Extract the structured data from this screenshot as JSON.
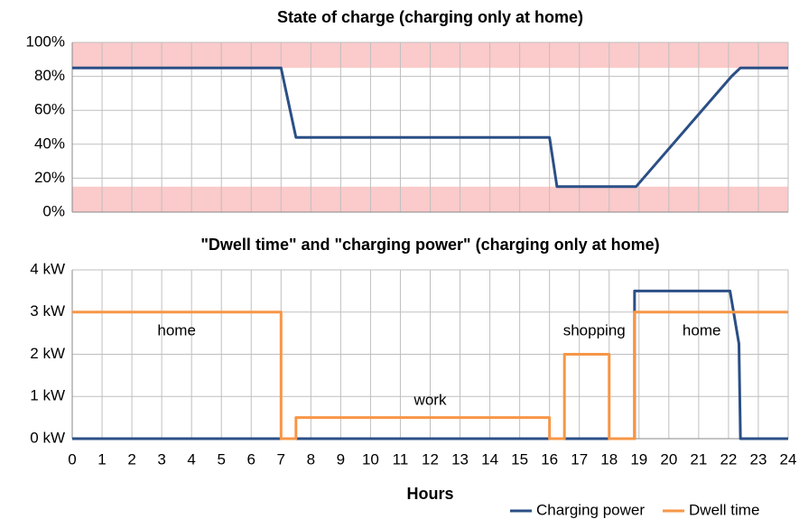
{
  "chart_data": [
    {
      "type": "line",
      "title": "State of charge (charging only at home)",
      "xlim": [
        0,
        24
      ],
      "xticks": [
        0,
        1,
        2,
        3,
        4,
        5,
        6,
        7,
        8,
        9,
        10,
        11,
        12,
        13,
        14,
        15,
        16,
        17,
        18,
        19,
        20,
        21,
        22,
        23,
        24
      ],
      "xtick_labels": false,
      "ylim": [
        0,
        100
      ],
      "yticks": [
        {
          "value": 0,
          "label": "0%"
        },
        {
          "value": 20,
          "label": "20%"
        },
        {
          "value": 40,
          "label": "40%"
        },
        {
          "value": 60,
          "label": "60%"
        },
        {
          "value": 80,
          "label": "80%"
        },
        {
          "value": 100,
          "label": "100%"
        }
      ],
      "grid": true,
      "bands": [
        [
          85,
          100
        ],
        [
          0,
          15
        ]
      ],
      "band_color": "#fbcaca",
      "series": [
        {
          "color": "#2b4f86",
          "x": [
            0,
            7,
            7.5,
            16,
            16.25,
            18.9,
            22.1,
            22.4,
            24
          ],
          "values": [
            85,
            85,
            44,
            44,
            15,
            15,
            80,
            85,
            85
          ]
        }
      ]
    },
    {
      "type": "line",
      "title": "\"Dwell time\" and \"charging power\" (charging only at home)",
      "xlabel": "Hours",
      "xlim": [
        0,
        24
      ],
      "xticks": [
        0,
        1,
        2,
        3,
        4,
        5,
        6,
        7,
        8,
        9,
        10,
        11,
        12,
        13,
        14,
        15,
        16,
        17,
        18,
        19,
        20,
        21,
        22,
        23,
        24
      ],
      "xtick_labels": true,
      "ylim": [
        0,
        4
      ],
      "yticks": [
        {
          "value": 0,
          "label": "0 kW"
        },
        {
          "value": 1,
          "label": "1 kW"
        },
        {
          "value": 2,
          "label": "2 kW"
        },
        {
          "value": 3,
          "label": "3 kW"
        },
        {
          "value": 4,
          "label": "4 kW"
        }
      ],
      "grid": true,
      "legend": "bottom-right",
      "series": [
        {
          "name": "Charging power",
          "color": "#2b4f86",
          "x": [
            0,
            18.85,
            18.85,
            22.05,
            22.35,
            22.4,
            24
          ],
          "values": [
            0,
            0,
            3.5,
            3.5,
            2.25,
            0,
            0
          ]
        },
        {
          "name": "Dwell time",
          "color": "#f79646",
          "x": [
            0,
            7,
            7,
            7.5,
            7.5,
            16,
            16,
            16.5,
            16.5,
            18,
            18,
            18.85,
            18.85,
            24
          ],
          "values": [
            3,
            3,
            0,
            0,
            0.5,
            0.5,
            0,
            0,
            2,
            2,
            0,
            0,
            3,
            3
          ]
        }
      ],
      "annotations": [
        {
          "text": "home",
          "x": 3.5,
          "y": 2.55
        },
        {
          "text": "work",
          "x": 12,
          "y": 0.9
        },
        {
          "text": "shopping",
          "x": 17.5,
          "y": 2.55
        },
        {
          "text": "home",
          "x": 21.1,
          "y": 2.55
        }
      ]
    }
  ]
}
